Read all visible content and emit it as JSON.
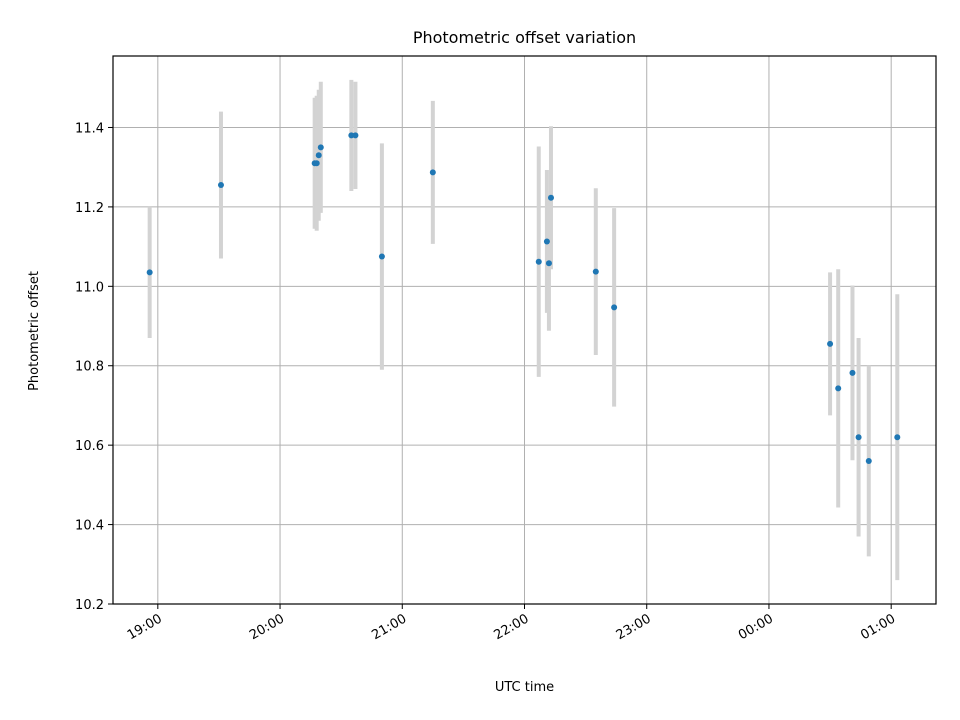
{
  "chart_data": {
    "type": "scatter",
    "title": "Photometric offset variation",
    "xlabel": "UTC time",
    "ylabel": "Photometric offset",
    "x_axis": {
      "kind": "time",
      "range": [
        "18:38",
        "01:22"
      ],
      "ticks": [
        "19:00",
        "20:00",
        "21:00",
        "22:00",
        "23:00",
        "00:00",
        "01:00"
      ]
    },
    "ylim": [
      10.2,
      11.58
    ],
    "yticks": [
      10.2,
      10.4,
      10.6,
      10.8,
      11.0,
      11.2,
      11.4
    ],
    "ytick_labels": [
      "10.2",
      "10.4",
      "10.6",
      "10.8",
      "11.0",
      "11.2",
      "11.4"
    ],
    "grid": true,
    "colors": {
      "point": "#1f77b4",
      "error_bar": "#d3d3d3",
      "grid": "#b0b0b0"
    },
    "points": [
      {
        "t": "18:56",
        "y": 11.035,
        "err": 0.165
      },
      {
        "t": "19:31",
        "y": 11.255,
        "err": 0.185
      },
      {
        "t": "20:17",
        "y": 11.31,
        "err": 0.165
      },
      {
        "t": "20:18",
        "y": 11.31,
        "err": 0.17
      },
      {
        "t": "20:19",
        "y": 11.33,
        "err": 0.165
      },
      {
        "t": "20:20",
        "y": 11.35,
        "err": 0.165
      },
      {
        "t": "20:35",
        "y": 11.38,
        "err": 0.14
      },
      {
        "t": "20:37",
        "y": 11.38,
        "err": 0.135
      },
      {
        "t": "20:50",
        "y": 11.075,
        "err": 0.285
      },
      {
        "t": "21:15",
        "y": 11.287,
        "err": 0.18
      },
      {
        "t": "22:07",
        "y": 11.062,
        "err": 0.29
      },
      {
        "t": "22:11",
        "y": 11.113,
        "err": 0.18
      },
      {
        "t": "22:12",
        "y": 11.058,
        "err": 0.17
      },
      {
        "t": "22:13",
        "y": 11.223,
        "err": 0.18
      },
      {
        "t": "22:35",
        "y": 11.037,
        "err": 0.21
      },
      {
        "t": "22:44",
        "y": 10.947,
        "err": 0.25
      },
      {
        "t": "00:30",
        "y": 10.855,
        "err": 0.18
      },
      {
        "t": "00:34",
        "y": 10.743,
        "err": 0.3
      },
      {
        "t": "00:41",
        "y": 10.782,
        "err": 0.22
      },
      {
        "t": "00:44",
        "y": 10.62,
        "err": 0.25
      },
      {
        "t": "00:49",
        "y": 10.56,
        "err": 0.24
      },
      {
        "t": "01:03",
        "y": 10.62,
        "err": 0.36
      }
    ]
  }
}
